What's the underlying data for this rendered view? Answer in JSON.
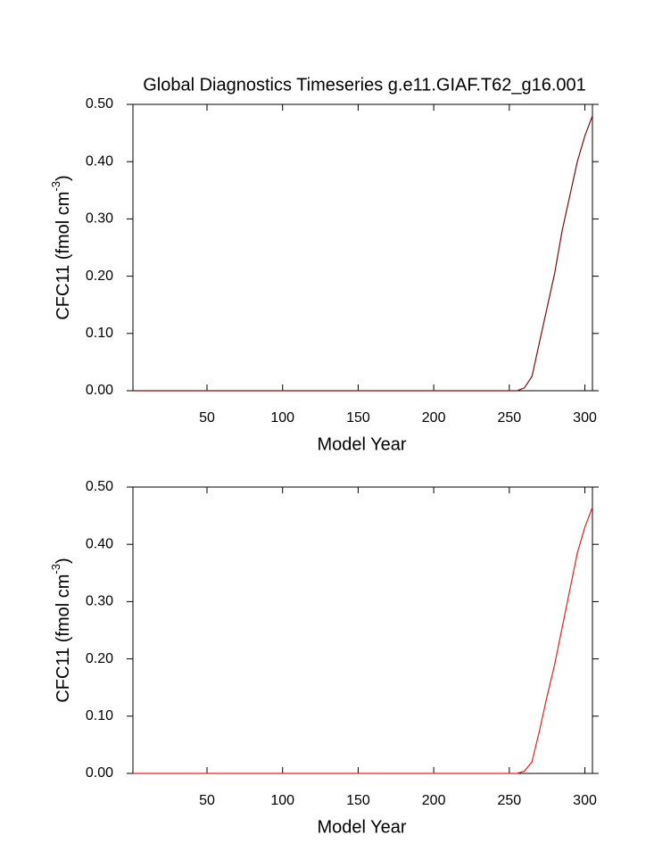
{
  "chart_data": [
    {
      "type": "line",
      "title": "Global Diagnostics Timeseries g.e11.GIAF.T62_g16.001",
      "x_label": "Model Year",
      "y_label": {
        "text": "CFC11 (fmol cm",
        "sup": "-3",
        "end": ")"
      },
      "x": [
        1,
        50,
        100,
        150,
        200,
        250,
        255,
        260,
        265,
        270,
        275,
        280,
        285,
        290,
        295,
        300,
        305
      ],
      "series": [
        {
          "color": "#7a0f0f",
          "values": [
            0,
            0,
            0,
            0,
            0,
            0,
            0,
            0.005,
            0.025,
            0.085,
            0.145,
            0.205,
            0.28,
            0.34,
            0.4,
            0.445,
            0.48
          ]
        }
      ],
      "xlim": [
        1,
        305
      ],
      "xticks": [
        50,
        100,
        150,
        200,
        250,
        300
      ],
      "ylim": [
        0,
        0.5
      ],
      "yticks": [
        {
          "value": 0,
          "label": "0.00"
        },
        {
          "value": 0.1,
          "label": "0.10"
        },
        {
          "value": 0.2,
          "label": "0.20"
        },
        {
          "value": 0.3,
          "label": "0.30"
        },
        {
          "value": 0.4,
          "label": "0.40"
        },
        {
          "value": 0.5,
          "label": "0.50"
        }
      ]
    },
    {
      "type": "line",
      "x_label": "Model Year",
      "y_label": {
        "text": "CFC11 (fmol cm",
        "sup": "-3",
        "end": ")"
      },
      "x": [
        1,
        50,
        100,
        150,
        200,
        250,
        255,
        260,
        265,
        270,
        275,
        280,
        285,
        290,
        295,
        300,
        305
      ],
      "series": [
        {
          "color": "#e8201c",
          "values": [
            0,
            0,
            0,
            0,
            0,
            0,
            0,
            0.004,
            0.02,
            0.075,
            0.135,
            0.19,
            0.255,
            0.32,
            0.385,
            0.43,
            0.465
          ]
        }
      ],
      "xlim": [
        1,
        305
      ],
      "xticks": [
        50,
        100,
        150,
        200,
        250,
        300
      ],
      "ylim": [
        0,
        0.5
      ],
      "yticks": [
        {
          "value": 0,
          "label": "0.00"
        },
        {
          "value": 0.1,
          "label": "0.10"
        },
        {
          "value": 0.2,
          "label": "0.20"
        },
        {
          "value": 0.3,
          "label": "0.30"
        },
        {
          "value": 0.4,
          "label": "0.40"
        },
        {
          "value": 0.5,
          "label": "0.50"
        }
      ]
    }
  ]
}
